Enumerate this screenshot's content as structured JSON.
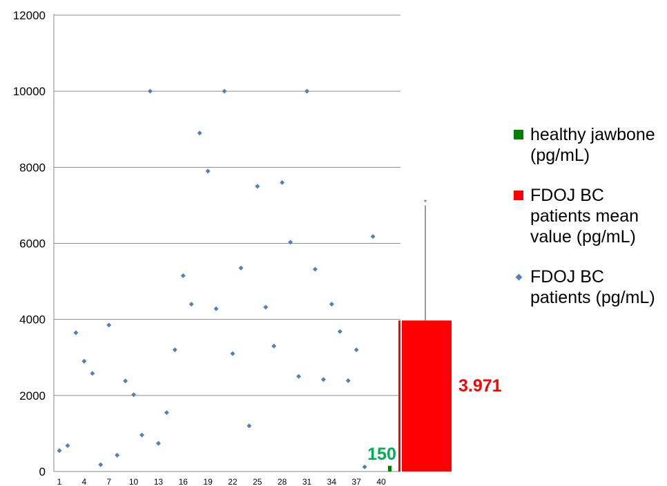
{
  "chart_data": {
    "type": "scatter",
    "title": "",
    "xlabel": "",
    "ylabel": "",
    "ylim": [
      0,
      12000
    ],
    "y_ticks": [
      "0",
      "2000",
      "4000",
      "6000",
      "8000",
      "10000",
      "12000"
    ],
    "xlim": [
      0,
      41
    ],
    "x_ticks": [
      "1",
      "4",
      "7",
      "10",
      "13",
      "16",
      "19",
      "22",
      "25",
      "28",
      "31",
      "34",
      "37",
      "40"
    ],
    "grid": true,
    "legend_position": "right",
    "series": [
      {
        "name": "FDOJ BC patients (pg/mL)",
        "type": "scatter",
        "color": "#4F81BD",
        "x": [
          1,
          2,
          3,
          4,
          5,
          6,
          7,
          8,
          9,
          10,
          11,
          12,
          13,
          14,
          15,
          16,
          17,
          18,
          19,
          20,
          21,
          22,
          23,
          24,
          25,
          26,
          27,
          28,
          29,
          30,
          31,
          32,
          33,
          34,
          35,
          36,
          37,
          38,
          39
        ],
        "y": [
          550,
          680,
          3650,
          2900,
          2580,
          180,
          3850,
          430,
          2380,
          2020,
          960,
          10000,
          740,
          1550,
          3200,
          5150,
          4400,
          8900,
          7900,
          4280,
          10000,
          3100,
          5350,
          1200,
          7500,
          4320,
          3300,
          7600,
          6030,
          2500,
          10000,
          5320,
          2420,
          4400,
          3680,
          2390,
          3200,
          120,
          6180
        ]
      },
      {
        "name": "healthy jawbone (pg/mL)",
        "type": "bar",
        "color": "#008000",
        "value": 150,
        "data_label": "150",
        "label_color": "#00B050"
      },
      {
        "name": "FDOJ BC patients mean value (pg/mL)",
        "type": "bar",
        "color": "#FF0000",
        "value": 3971,
        "error_upper": 7000,
        "data_label": "3.971",
        "label_color": "#FF0000",
        "annotation": "*"
      }
    ]
  }
}
